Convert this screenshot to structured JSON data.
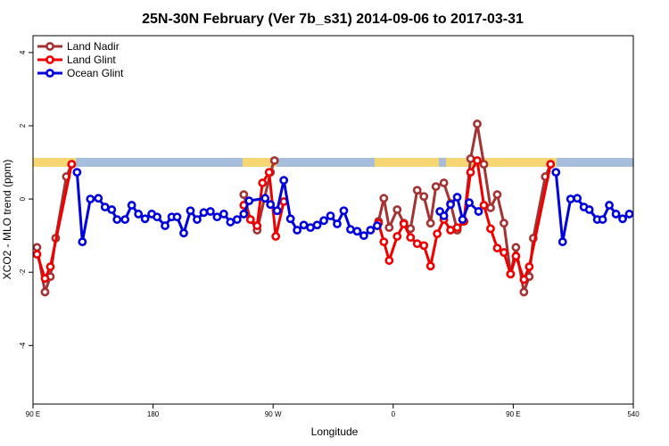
{
  "chart_data": {
    "type": "line",
    "title": "25N-30N February (Ver 7b_s31)   2014-09-06 to 2017-03-31",
    "xlabel": "Longitude",
    "ylabel": "XCO2 - MLO trend (ppm)",
    "xlim": [
      90,
      540
    ],
    "ylim": [
      -5.6,
      4.46
    ],
    "xticks": [
      {
        "value": 90,
        "label": "90 E"
      },
      180,
      {
        "value": 270,
        "label": "90 W"
      },
      {
        "value": 360,
        "label": "0"
      },
      {
        "value": 450,
        "label": "90 E"
      },
      540
    ],
    "yticks": [
      -4,
      -2,
      0,
      2,
      4
    ],
    "legend": "upper left",
    "series": [
      {
        "name": "Land Nadir",
        "color": "#a33232",
        "x": [
          93,
          99,
          103,
          107,
          115,
          119,
          null,
          248,
          253,
          258,
          268,
          271,
          null,
          349,
          353,
          357,
          363,
          368,
          373,
          378,
          383,
          388,
          392,
          398,
          403,
          408,
          413,
          418,
          423,
          428,
          433,
          438,
          443,
          448,
          452,
          458,
          462,
          465,
          474,
          478
        ],
        "values": [
          -1.32,
          -2.54,
          -2.12,
          -1.07,
          0.61,
          0.95,
          null,
          0.12,
          -0.56,
          -0.85,
          0.73,
          1.05,
          null,
          -0.61,
          0.02,
          -0.78,
          -0.29,
          -0.66,
          -0.81,
          0.24,
          0.07,
          -0.66,
          0.34,
          0.44,
          -0.12,
          -0.85,
          -0.61,
          1.1,
          2.05,
          0.95,
          -0.24,
          0.12,
          -0.66,
          -2.05,
          -1.32,
          -2.54,
          -2.12,
          -1.07,
          0.61,
          0.95
        ]
      },
      {
        "name": "Land Glint",
        "color": "#ee0000",
        "x": [
          93,
          99,
          103,
          119,
          null,
          248,
          253,
          258,
          262,
          267,
          272,
          278,
          null,
          349,
          353,
          357,
          363,
          368,
          373,
          378,
          383,
          388,
          393,
          398,
          403,
          408,
          413,
          418,
          423,
          428,
          433,
          438,
          443,
          448,
          452,
          458,
          462,
          478
        ],
        "values": [
          -1.51,
          -2.17,
          -1.85,
          0.95,
          null,
          -0.17,
          -0.56,
          -0.73,
          0.44,
          0.73,
          -1.02,
          -0.07,
          null,
          -0.66,
          -1.17,
          -1.68,
          -1.02,
          -0.68,
          -1.05,
          -1.22,
          -1.27,
          -1.83,
          -0.95,
          -0.56,
          -0.85,
          -0.78,
          -0.61,
          0.73,
          1.05,
          -0.17,
          -0.81,
          -1.34,
          -1.46,
          -2.05,
          -1.56,
          -2.2,
          -1.85,
          0.95
        ]
      },
      {
        "name": "Ocean Glint",
        "color": "#0000dd",
        "x": [
          123,
          127,
          133,
          139,
          144,
          149,
          153,
          159,
          164,
          169,
          174,
          179,
          183,
          189,
          194,
          198,
          203,
          208,
          213,
          218,
          223,
          228,
          233,
          238,
          243,
          248,
          252,
          264,
          268,
          273,
          278,
          283,
          288,
          293,
          298,
          303,
          308,
          313,
          318,
          323,
          328,
          333,
          338,
          343,
          348,
          null,
          395,
          398,
          403,
          408,
          412,
          417,
          424,
          null,
          482,
          487,
          493,
          498,
          503,
          507,
          513,
          517,
          522,
          527,
          532,
          537
        ],
        "values": [
          0.73,
          -1.17,
          0.0,
          0.02,
          -0.22,
          -0.29,
          -0.56,
          -0.56,
          -0.17,
          -0.41,
          -0.54,
          -0.41,
          -0.49,
          -0.73,
          -0.49,
          -0.49,
          -0.93,
          -0.32,
          -0.56,
          -0.37,
          -0.34,
          -0.49,
          -0.41,
          -0.63,
          -0.56,
          -0.41,
          -0.05,
          0.02,
          -0.15,
          -0.32,
          0.51,
          -0.54,
          -0.85,
          -0.71,
          -0.78,
          -0.71,
          -0.59,
          -0.46,
          -0.68,
          -0.32,
          -0.83,
          -0.88,
          -1.0,
          -0.85,
          -0.73,
          null,
          -0.34,
          -0.46,
          -0.15,
          0.05,
          -0.56,
          -0.1,
          -0.34,
          null,
          0.73,
          -1.17,
          0.0,
          0.02,
          -0.22,
          -0.29,
          -0.56,
          -0.56,
          -0.17,
          -0.41,
          -0.54,
          -0.41
        ]
      }
    ]
  }
}
